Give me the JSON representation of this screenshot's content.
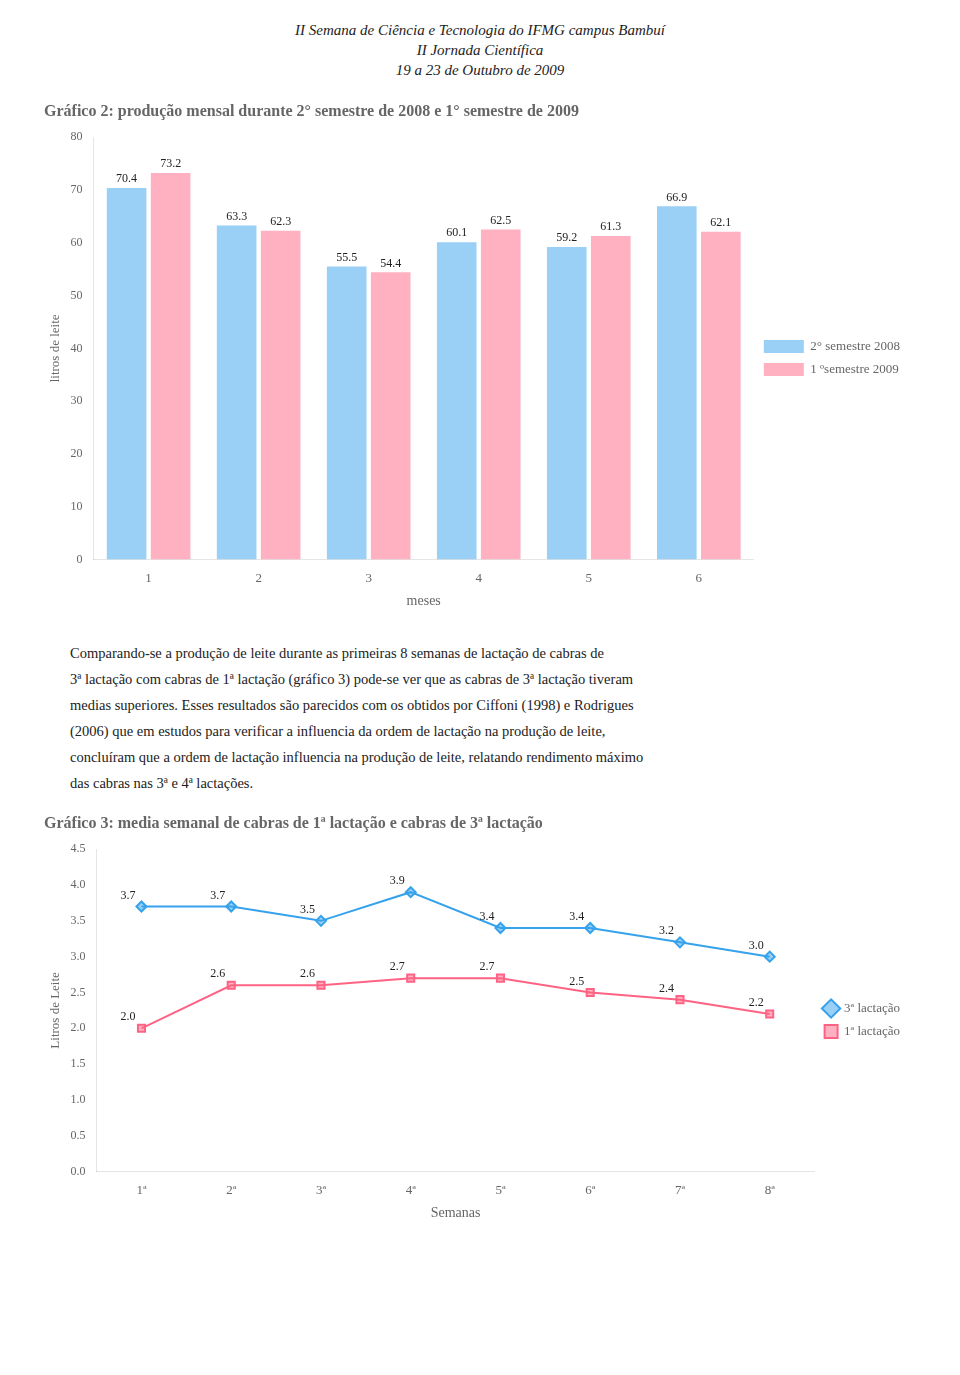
{
  "header_lines": [
    "II Semana de Ciência e Tecnologia do IFMG campus Bambuí",
    "II Jornada Científica",
    "19 a 23 de Outubro de 2009"
  ],
  "paragraph_lines": [
    "Comparando-se a produção de leite durante as primeiras 8 semanas de lactação de cabras de",
    "3ª lactação com cabras de 1ª lactação (gráfico 3) pode-se ver que as cabras de 3ª lactação tiveram",
    "medias superiores. Esses resultados são parecidos com os obtidos por Ciffoni (1998) e Rodrigues",
    "(2006) que em estudos para verificar a influencia da ordem de lactação na produção de leite,",
    "concluíram que a ordem de lactação influencia na produção de leite, relatando rendimento máximo",
    "das cabras nas 3ª e 4ª lactações."
  ],
  "chart_data": [
    {
      "type": "bar",
      "title": "Gráfico 2: produção mensal durante 2° semestre de 2008 e 1° semestre de 2009",
      "categories": [
        1,
        2,
        3,
        4,
        5,
        6
      ],
      "series": [
        {
          "name": "2° semestre 2008",
          "values": [
            70.4,
            63.3,
            55.5,
            60.1,
            59.2,
            66.9
          ]
        },
        {
          "name": "1 ºsemestre 2009",
          "values": [
            73.2,
            62.3,
            54.4,
            62.5,
            61.3,
            62.1
          ]
        }
      ],
      "xlabel": "meses",
      "ylabel": "litros de leite",
      "ylim": [
        0,
        80
      ],
      "yticks": [
        0,
        10,
        20,
        30,
        40,
        50,
        60,
        70,
        80
      ],
      "grid": false,
      "legend": "right",
      "data_labels": true
    },
    {
      "type": "line",
      "title": "Gráfico 3: media semanal de cabras de 1ª lactação e cabras de 3ª lactação",
      "categories": [
        "1ª",
        "2ª",
        "3ª",
        "4ª",
        "5ª",
        "6ª",
        "7ª",
        "8ª"
      ],
      "series": [
        {
          "name": "3ª lactação",
          "marker": "diamond",
          "values": [
            3.7,
            3.7,
            3.5,
            3.9,
            3.4,
            3.4,
            3.2,
            3.0
          ],
          "value_labels": [
            "3.7",
            "3.7",
            "3.5",
            "3.9",
            "3.4",
            "3.4",
            "3.2",
            "3.0"
          ]
        },
        {
          "name": "1ª lactação",
          "marker": "square",
          "values": [
            2.0,
            2.6,
            2.6,
            2.7,
            2.7,
            2.5,
            2.4,
            2.2
          ],
          "value_labels": [
            "2.0",
            "2.6",
            "2.6",
            "2.7",
            "2.7",
            "2.5",
            "2.4",
            "2.2"
          ]
        }
      ],
      "xlabel": "Semanas",
      "ylabel": "Litros de Leite",
      "ylim": [
        0,
        4.5
      ],
      "yticks": [
        {
          "value": 0,
          "label": "0.0"
        },
        0.5,
        {
          "value": 1,
          "label": "1.0"
        },
        1.5,
        {
          "value": 2,
          "label": "2.0"
        },
        2.5,
        {
          "value": 3,
          "label": "3.0"
        },
        3.5,
        {
          "value": 4,
          "label": "4.0"
        },
        4.5
      ],
      "grid": false,
      "legend": "right",
      "data_labels": true
    }
  ]
}
